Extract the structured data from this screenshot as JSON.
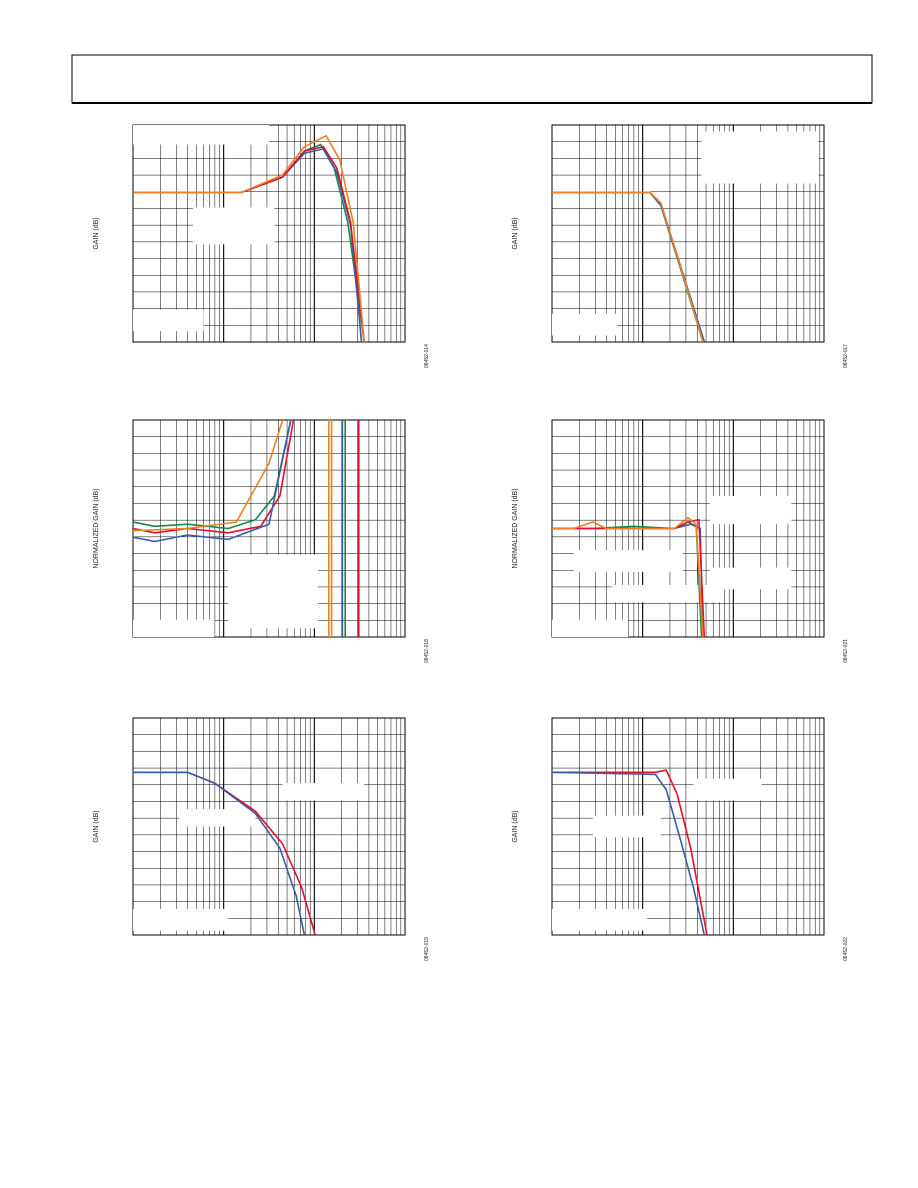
{
  "figures": [
    {
      "y_label": "GAIN (dB)",
      "code": "08452-014"
    },
    {
      "y_label": "GAIN (dB)",
      "code": "08452-017"
    },
    {
      "y_label": "NORMALIZED GAIN (dB)",
      "code": "08452-018"
    },
    {
      "y_label": "NORMALIZED GAIN (dB)",
      "code": "08452-021"
    },
    {
      "y_label": "GAIN (dB)",
      "code": "08452-019"
    },
    {
      "y_label": "GAIN (dB)",
      "code": "08452-022"
    }
  ]
}
